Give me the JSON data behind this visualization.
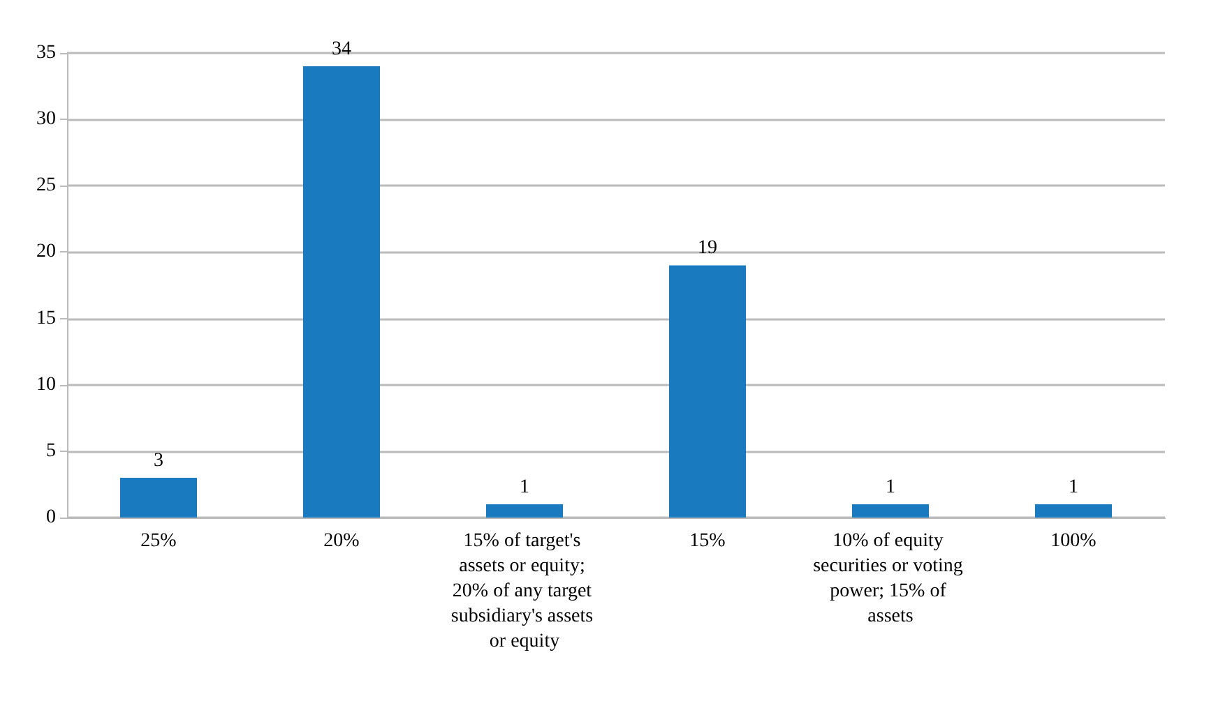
{
  "chart_data": {
    "type": "bar",
    "categories": [
      "25%",
      "20%",
      "15% of target's assets or equity; 20% of any target subsidiary's assets or equity",
      "15%",
      "10% of equity securities or voting power; 15% of assets",
      "100%"
    ],
    "values": [
      3,
      34,
      1,
      19,
      1,
      1
    ],
    "color": "#1a7abf",
    "ylim": [
      0,
      35
    ],
    "yticks": [
      0,
      5,
      10,
      15,
      20,
      25,
      30,
      35
    ],
    "grid": "y",
    "data_labels": true
  }
}
